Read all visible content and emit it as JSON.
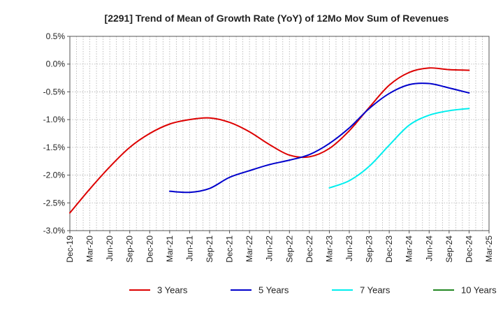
{
  "chart_data": {
    "type": "line",
    "title": "[2291]  Trend of Mean of Growth Rate (YoY) of 12Mo Mov Sum of Revenues",
    "xlabel": "",
    "ylabel": "",
    "ylim": [
      -3.0,
      0.5
    ],
    "y_ticks": [
      0.5,
      0.0,
      -0.5,
      -1.0,
      -1.5,
      -2.0,
      -2.5,
      -3.0
    ],
    "y_tick_labels": [
      "0.5%",
      "0.0%",
      "-0.5%",
      "-1.0%",
      "-1.5%",
      "-2.0%",
      "-2.5%",
      "-3.0%"
    ],
    "x_range_months": [
      0,
      63
    ],
    "x_tick_labels": [
      "Dec-19",
      "Mar-20",
      "Jun-20",
      "Sep-20",
      "Dec-20",
      "Mar-21",
      "Jun-21",
      "Sep-21",
      "Dec-21",
      "Mar-22",
      "Jun-22",
      "Sep-22",
      "Dec-22",
      "Mar-23",
      "Jun-23",
      "Sep-23",
      "Dec-23",
      "Mar-24",
      "Jun-24",
      "Sep-24",
      "Dec-24",
      "Mar-25"
    ],
    "grid": true,
    "legend_position": "bottom",
    "series": [
      {
        "name": "3 Years",
        "color": "#dd0000",
        "points": [
          [
            0,
            -2.68
          ],
          [
            3,
            -2.25
          ],
          [
            6,
            -1.85
          ],
          [
            9,
            -1.5
          ],
          [
            12,
            -1.25
          ],
          [
            15,
            -1.08
          ],
          [
            18,
            -1.0
          ],
          [
            21,
            -0.97
          ],
          [
            24,
            -1.05
          ],
          [
            27,
            -1.22
          ],
          [
            30,
            -1.45
          ],
          [
            33,
            -1.64
          ],
          [
            36,
            -1.67
          ],
          [
            39,
            -1.52
          ],
          [
            42,
            -1.2
          ],
          [
            45,
            -0.78
          ],
          [
            48,
            -0.38
          ],
          [
            51,
            -0.15
          ],
          [
            54,
            -0.07
          ],
          [
            57,
            -0.1
          ],
          [
            60,
            -0.11
          ]
        ]
      },
      {
        "name": "5 Years",
        "color": "#0000cc",
        "points": [
          [
            15,
            -2.29
          ],
          [
            18,
            -2.31
          ],
          [
            21,
            -2.24
          ],
          [
            24,
            -2.04
          ],
          [
            27,
            -1.92
          ],
          [
            30,
            -1.81
          ],
          [
            33,
            -1.73
          ],
          [
            36,
            -1.63
          ],
          [
            39,
            -1.43
          ],
          [
            42,
            -1.15
          ],
          [
            45,
            -0.8
          ],
          [
            48,
            -0.53
          ],
          [
            51,
            -0.37
          ],
          [
            54,
            -0.35
          ],
          [
            57,
            -0.43
          ],
          [
            60,
            -0.52
          ]
        ]
      },
      {
        "name": "7 Years",
        "color": "#00eeee",
        "points": [
          [
            39,
            -2.23
          ],
          [
            42,
            -2.1
          ],
          [
            45,
            -1.84
          ],
          [
            48,
            -1.46
          ],
          [
            51,
            -1.1
          ],
          [
            54,
            -0.92
          ],
          [
            57,
            -0.84
          ],
          [
            60,
            -0.8
          ]
        ]
      },
      {
        "name": "10 Years",
        "color": "#228822",
        "points": []
      }
    ]
  }
}
